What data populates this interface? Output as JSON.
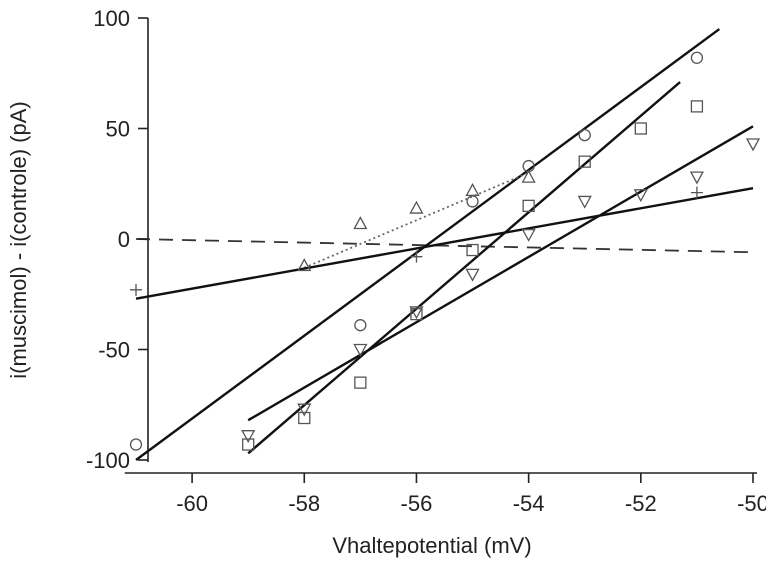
{
  "chart_data": {
    "type": "scatter",
    "title": "",
    "xlabel": "Vhaltepotential (mV)",
    "ylabel": "i(muscimol) - i(controle)  (pA)",
    "xlim": [
      -61.3,
      -50
    ],
    "ylim": [
      -105,
      100
    ],
    "x_ticks": [
      -60,
      -58,
      -56,
      -54,
      -52,
      -50
    ],
    "x_tick_labels": [
      "-60",
      "-58",
      "-56",
      "-54",
      "-52",
      "-50"
    ],
    "y_ticks": [
      100,
      50,
      0,
      -50,
      -100
    ],
    "y_tick_labels": [
      "100",
      "50",
      "0",
      "-50",
      "-100"
    ],
    "grid": false,
    "legend": "none",
    "series": [
      {
        "marker": "circle",
        "points": [
          [
            -61,
            -93
          ],
          [
            -57,
            -39
          ],
          [
            -55,
            17
          ],
          [
            -54,
            33
          ],
          [
            -53,
            47
          ],
          [
            -51,
            82
          ]
        ],
        "fit": {
          "style": "solid",
          "x": [
            -61,
            -50.6
          ],
          "y": [
            -100,
            95
          ]
        }
      },
      {
        "marker": "square",
        "points": [
          [
            -59,
            -93
          ],
          [
            -58,
            -81
          ],
          [
            -57,
            -65
          ],
          [
            -56,
            -34
          ],
          [
            -55,
            -5
          ],
          [
            -54,
            15
          ],
          [
            -53,
            35
          ],
          [
            -52,
            50
          ],
          [
            -51,
            60
          ]
        ],
        "fit": {
          "style": "solid",
          "x": [
            -59,
            -51.3
          ],
          "y": [
            -97,
            71
          ]
        }
      },
      {
        "marker": "triangle-down",
        "points": [
          [
            -59,
            -89
          ],
          [
            -58,
            -77
          ],
          [
            -57,
            -50
          ],
          [
            -56,
            -33
          ],
          [
            -55,
            -16
          ],
          [
            -54,
            2
          ],
          [
            -53,
            17
          ],
          [
            -52,
            20
          ],
          [
            -51,
            28
          ],
          [
            -50,
            43
          ]
        ],
        "fit": {
          "style": "solid",
          "x": [
            -59,
            -50
          ],
          "y": [
            -82,
            51
          ]
        }
      },
      {
        "marker": "triangle-up",
        "points": [
          [
            -58,
            -12
          ],
          [
            -57,
            7
          ],
          [
            -56,
            14
          ],
          [
            -55,
            22
          ],
          [
            -54,
            28
          ]
        ],
        "fit": {
          "style": "dotted",
          "x": [
            -58,
            -54
          ],
          "y": [
            -13,
            30
          ]
        }
      },
      {
        "marker": "plus",
        "points": [
          [
            -61,
            -23
          ],
          [
            -56,
            -8
          ],
          [
            -51,
            21
          ]
        ],
        "fit": {
          "style": "solid",
          "x": [
            -61,
            -50
          ],
          "y": [
            -27,
            23
          ]
        }
      }
    ],
    "reference_lines": [
      {
        "style": "dashed",
        "x": [
          -61,
          -50
        ],
        "y": [
          0,
          -6
        ]
      }
    ]
  }
}
